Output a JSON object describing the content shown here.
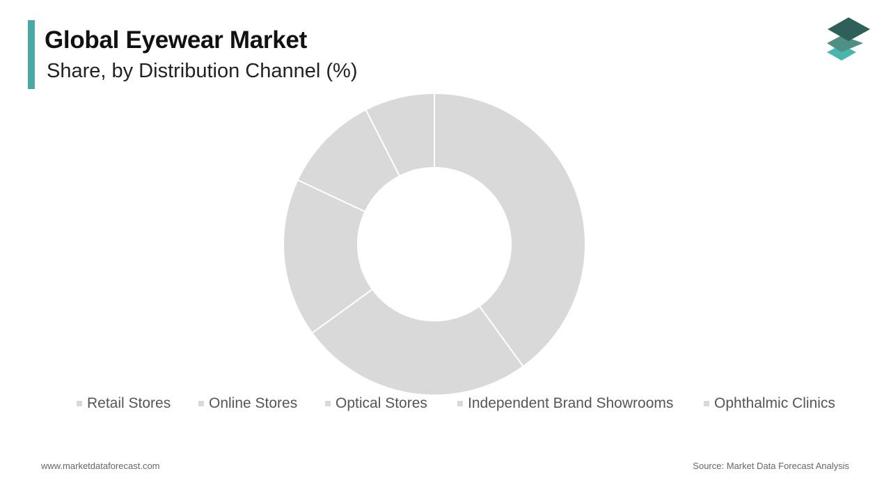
{
  "header": {
    "title": "Global Eyewear Market",
    "subtitle": "Share, by Distribution Channel (%)",
    "accent_color": "#4aa9a6"
  },
  "logo": {
    "icon": "stacked-layers-icon",
    "colors": [
      "#2e5f58",
      "#4f8f84",
      "#4ab5ad"
    ]
  },
  "chart_data": {
    "type": "pie",
    "donut": true,
    "title": "Global Eyewear Market",
    "subtitle": "Share, by Distribution Channel (%)",
    "categories": [
      "Retail Stores",
      "Online Stores",
      "Optical Stores",
      "Independent Brand Showrooms",
      "Ophthalmic Clinics"
    ],
    "values": [
      40,
      25,
      17,
      10.5,
      7.5
    ],
    "slice_color": "#d9d9d9",
    "separator_color": "#ffffff",
    "legend_position": "bottom",
    "start_angle_deg": 0,
    "direction": "clockwise"
  },
  "footer": {
    "website": "www.marketdataforecast.com",
    "source": "Source: Market Data Forecast Analysis"
  }
}
